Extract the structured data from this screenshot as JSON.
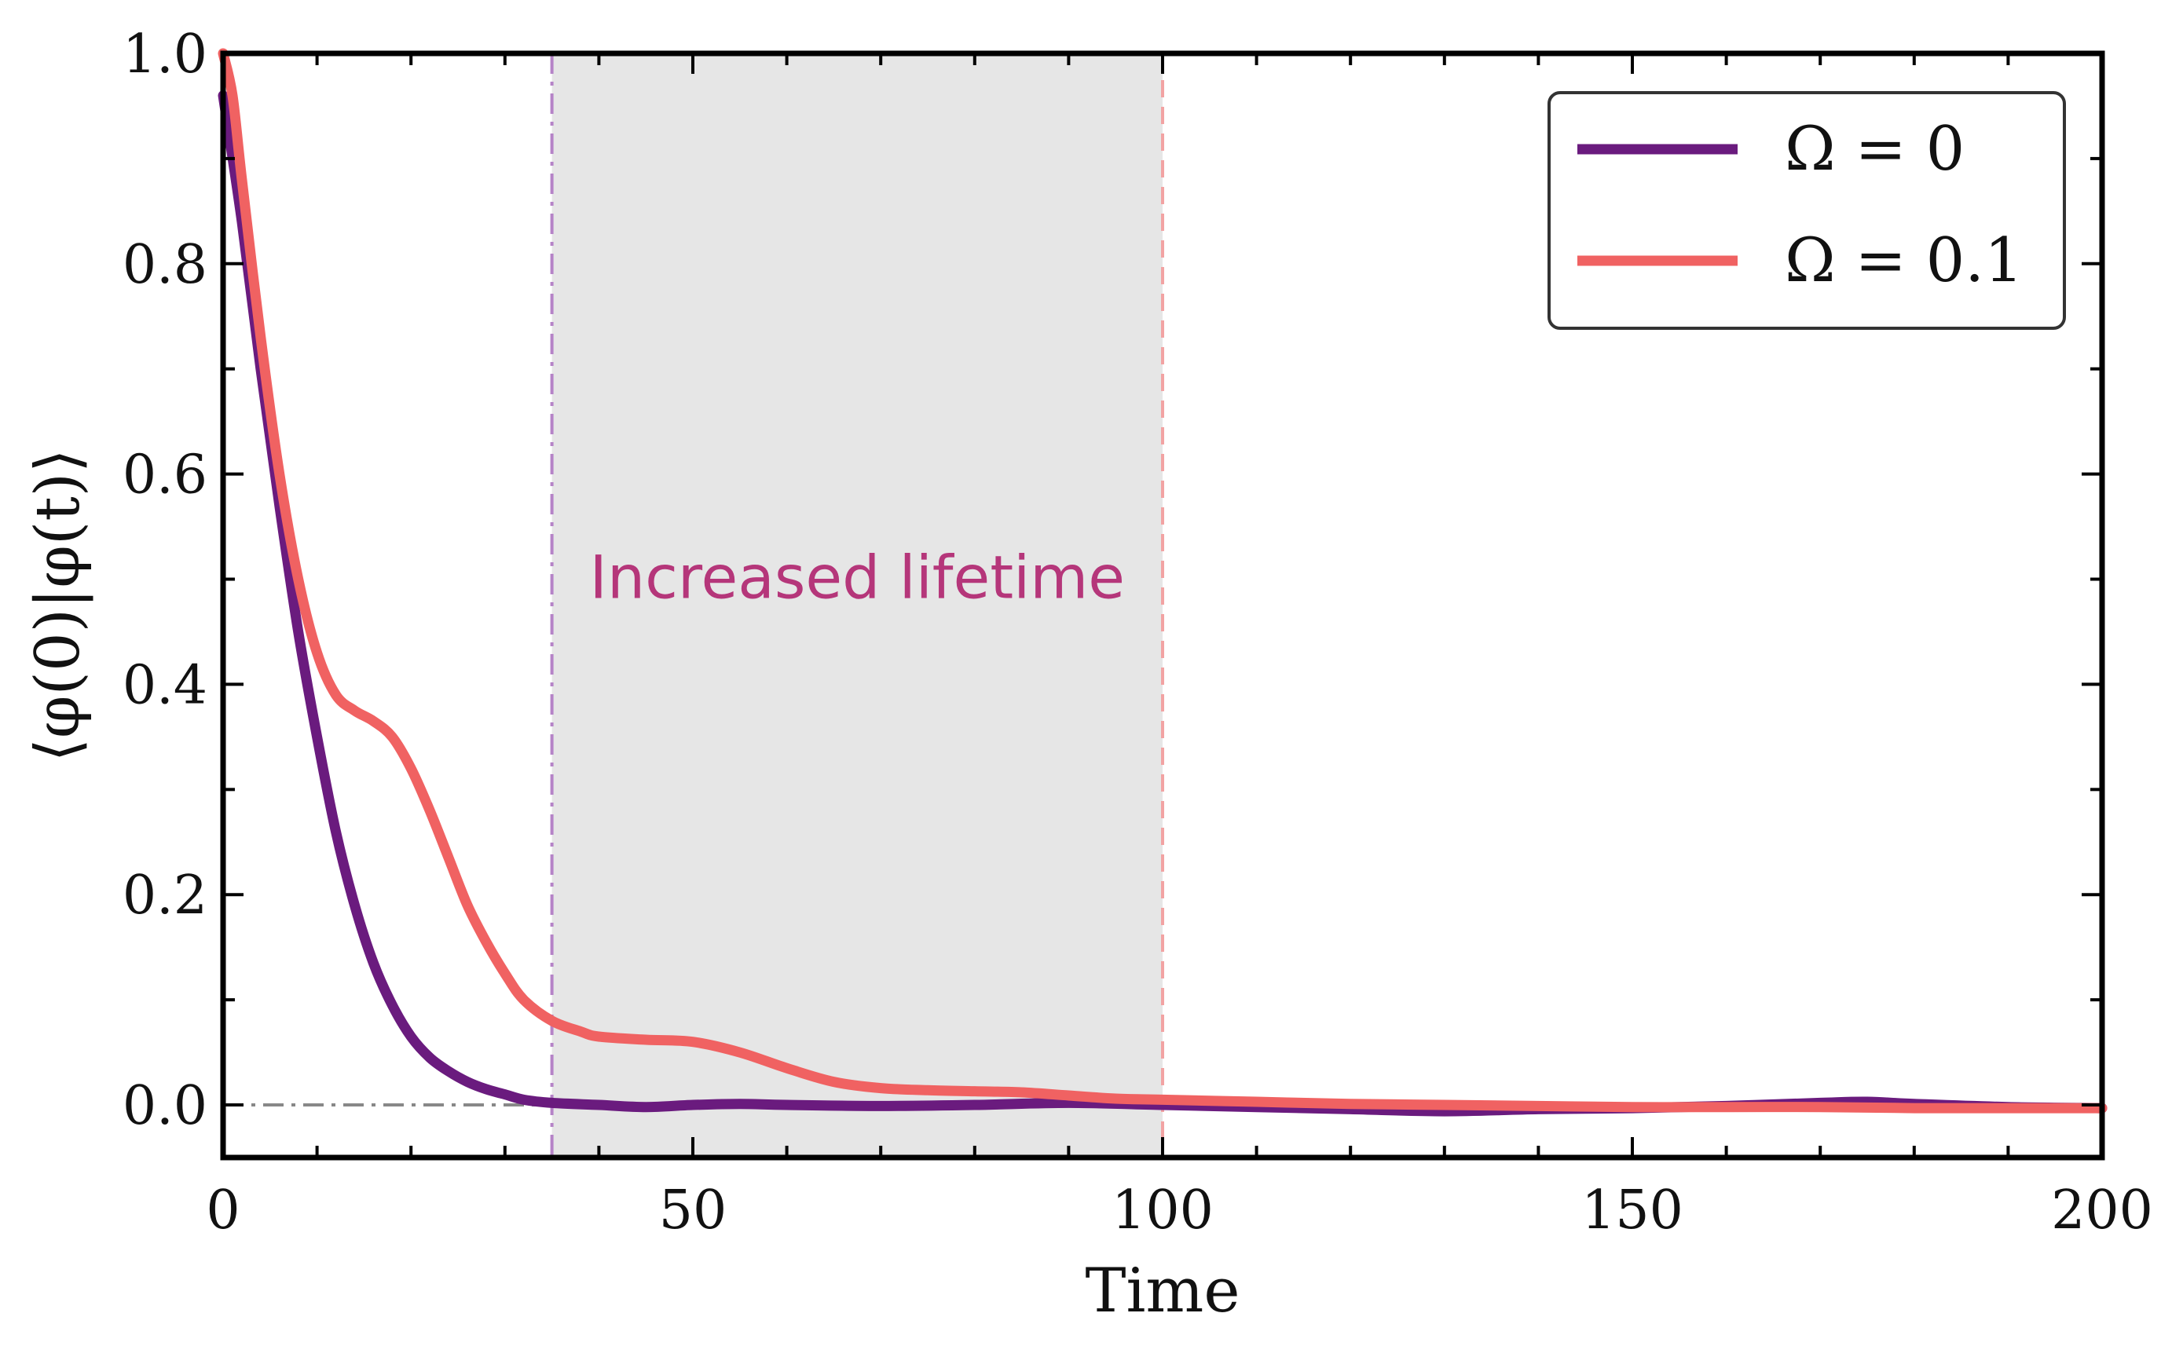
{
  "chart_data": {
    "type": "line",
    "xlabel": "Time",
    "ylabel": "⟨φ(0)|φ(t)⟩",
    "xlim": [
      0,
      200
    ],
    "ylim": [
      -0.05,
      1.0
    ],
    "x_ticks": [
      0,
      50,
      100,
      150,
      200
    ],
    "x_tick_labels": [
      "0",
      "50",
      "100",
      "150",
      "200"
    ],
    "x_minor_step": 10,
    "y_ticks": [
      0.0,
      0.2,
      0.4,
      0.6,
      0.8,
      1.0
    ],
    "y_tick_labels": [
      "0.0",
      "0.2",
      "0.4",
      "0.6",
      "0.8",
      "1.0"
    ],
    "y_minor_step": 0.1,
    "grid": false,
    "legend_position": "top-right",
    "reference_line": {
      "y": 0,
      "style": "dash-dot",
      "color": "#888888"
    },
    "shaded_region": {
      "x_start": 35,
      "x_end": 100,
      "color": "#e6e6e6"
    },
    "vlines": [
      {
        "x": 35,
        "color": "#b583c7",
        "style": "dash-dot"
      },
      {
        "x": 100,
        "color": "#f2a3a3",
        "style": "dashed"
      }
    ],
    "annotation": {
      "text": "Increased lifetime",
      "x": 67.5,
      "y": 0.5,
      "color": "#b5367a"
    },
    "series": [
      {
        "name": "Ω = 0",
        "color": "#6a1b7e",
        "x": [
          0,
          2,
          4,
          6,
          8,
          10,
          12,
          14,
          16,
          18,
          20,
          22,
          24,
          26,
          28,
          30,
          32,
          35,
          40,
          45,
          50,
          55,
          60,
          70,
          80,
          90,
          100,
          110,
          120,
          130,
          140,
          150,
          160,
          170,
          175,
          180,
          190,
          200
        ],
        "y": [
          0.96,
          0.84,
          0.7,
          0.57,
          0.45,
          0.35,
          0.26,
          0.19,
          0.135,
          0.095,
          0.065,
          0.045,
          0.032,
          0.022,
          0.015,
          0.01,
          0.005,
          0.002,
          0.0,
          -0.002,
          0.0,
          0.001,
          0.0,
          -0.001,
          0.0,
          0.002,
          0.0,
          -0.002,
          -0.004,
          -0.006,
          -0.004,
          -0.003,
          -0.001,
          0.002,
          0.003,
          0.001,
          -0.002,
          -0.003
        ]
      },
      {
        "name": "Ω = 0.1",
        "color": "#f06262",
        "x": [
          0,
          1,
          2,
          4,
          6,
          8,
          10,
          12,
          14,
          16,
          18,
          20,
          22,
          24,
          26,
          28,
          30,
          32,
          35,
          38,
          40,
          45,
          50,
          55,
          60,
          65,
          70,
          75,
          80,
          85,
          90,
          95,
          100,
          110,
          120,
          130,
          140,
          150,
          160,
          170,
          180,
          190,
          200
        ],
        "y": [
          1.0,
          0.96,
          0.88,
          0.73,
          0.6,
          0.5,
          0.43,
          0.39,
          0.375,
          0.365,
          0.35,
          0.32,
          0.28,
          0.235,
          0.19,
          0.155,
          0.125,
          0.1,
          0.08,
          0.07,
          0.065,
          0.062,
          0.06,
          0.05,
          0.035,
          0.022,
          0.016,
          0.014,
          0.013,
          0.012,
          0.009,
          0.006,
          0.005,
          0.003,
          0.001,
          0.0,
          -0.001,
          -0.002,
          -0.002,
          -0.002,
          -0.003,
          -0.003,
          -0.003
        ]
      }
    ]
  }
}
